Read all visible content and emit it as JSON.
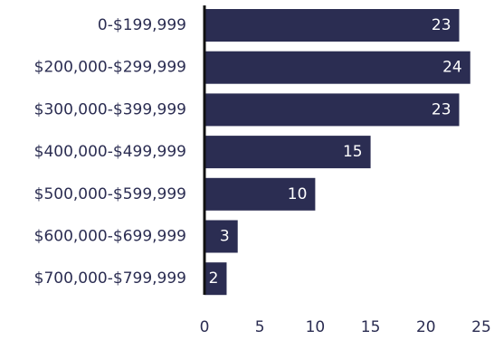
{
  "chart_data": {
    "type": "bar",
    "orientation": "horizontal",
    "categories": [
      "0-$199,999",
      "$200,000-$299,999",
      "$300,000-$399,999",
      "$400,000-$499,999",
      "$500,000-$599,999",
      "$600,000-$699,999",
      "$700,000-$799,999"
    ],
    "values": [
      23,
      24,
      23,
      15,
      10,
      3,
      2
    ],
    "xlim": [
      0,
      25
    ],
    "x_ticks": [
      0,
      5,
      10,
      15,
      20,
      25
    ],
    "grid": false,
    "show_data_labels": true,
    "colors": {
      "bar": "#2b2d52",
      "axis": "#111111",
      "text": "#2b2d52",
      "value_text": "#ffffff"
    }
  }
}
